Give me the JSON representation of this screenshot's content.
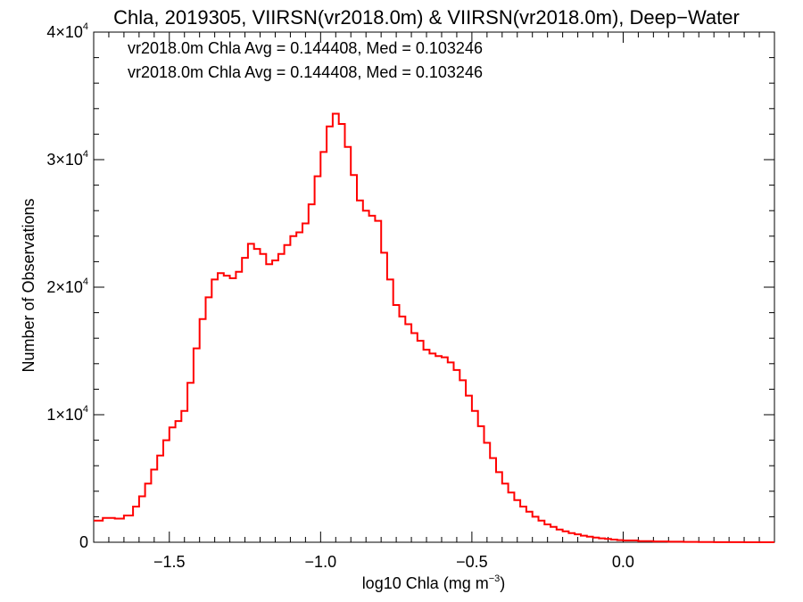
{
  "chart_data": {
    "type": "line",
    "title": "Chla, 2019305, VIIRSN(vr2018.0m) & VIIRSN(vr2018.0m), Deep−Water",
    "xlabel": "log10 Chla (mg m",
    "xlabel_sup": "−3",
    "xlabel_close": ")",
    "ylabel": "Number of Observations",
    "xlim": [
      -1.75,
      0.5
    ],
    "ylim": [
      0,
      40000
    ],
    "x_ticks": [
      {
        "value": -1.5,
        "label": "−1.5"
      },
      {
        "value": -1.0,
        "label": "−1.0"
      },
      {
        "value": -0.5,
        "label": "−0.5"
      },
      {
        "value": 0.0,
        "label": "0.0"
      }
    ],
    "y_ticks": [
      {
        "value": 0,
        "label": "0",
        "sup": ""
      },
      {
        "value": 10000,
        "label": "1×10",
        "sup": "4"
      },
      {
        "value": 20000,
        "label": "2×10",
        "sup": "4"
      },
      {
        "value": 30000,
        "label": "3×10",
        "sup": "4"
      },
      {
        "value": 40000,
        "label": "4×10",
        "sup": "4"
      }
    ],
    "annotations": [
      {
        "text": "vr2018.0m Chla Avg = 0.144408, Med = 0.103246",
        "color": "#000000"
      },
      {
        "text": "vr2018.0m Chla Avg = 0.144408, Med = 0.103246",
        "color": "#ff0000"
      }
    ],
    "grid": false,
    "step": true,
    "series": [
      {
        "color": "#ff0000",
        "points": [
          [
            -1.75,
            1700
          ],
          [
            -1.72,
            1900
          ],
          [
            -1.68,
            1850
          ],
          [
            -1.65,
            2100
          ],
          [
            -1.62,
            2800
          ],
          [
            -1.6,
            3600
          ],
          [
            -1.58,
            4600
          ],
          [
            -1.56,
            5700
          ],
          [
            -1.54,
            6800
          ],
          [
            -1.52,
            8000
          ],
          [
            -1.5,
            9000
          ],
          [
            -1.48,
            9500
          ],
          [
            -1.46,
            10300
          ],
          [
            -1.44,
            12500
          ],
          [
            -1.42,
            15200
          ],
          [
            -1.4,
            17500
          ],
          [
            -1.38,
            19200
          ],
          [
            -1.36,
            20600
          ],
          [
            -1.34,
            21100
          ],
          [
            -1.32,
            20900
          ],
          [
            -1.3,
            20700
          ],
          [
            -1.28,
            21200
          ],
          [
            -1.26,
            22300
          ],
          [
            -1.24,
            23400
          ],
          [
            -1.22,
            23000
          ],
          [
            -1.2,
            22600
          ],
          [
            -1.18,
            21800
          ],
          [
            -1.16,
            22100
          ],
          [
            -1.14,
            22600
          ],
          [
            -1.12,
            23300
          ],
          [
            -1.1,
            24000
          ],
          [
            -1.08,
            24300
          ],
          [
            -1.06,
            25000
          ],
          [
            -1.04,
            26500
          ],
          [
            -1.02,
            28700
          ],
          [
            -1.0,
            30600
          ],
          [
            -0.98,
            32600
          ],
          [
            -0.96,
            33600
          ],
          [
            -0.94,
            32800
          ],
          [
            -0.92,
            31000
          ],
          [
            -0.9,
            28800
          ],
          [
            -0.88,
            26800
          ],
          [
            -0.86,
            26000
          ],
          [
            -0.84,
            25600
          ],
          [
            -0.82,
            25200
          ],
          [
            -0.8,
            22700
          ],
          [
            -0.78,
            20600
          ],
          [
            -0.76,
            18600
          ],
          [
            -0.74,
            17700
          ],
          [
            -0.72,
            17100
          ],
          [
            -0.7,
            16400
          ],
          [
            -0.68,
            15800
          ],
          [
            -0.66,
            15100
          ],
          [
            -0.64,
            14800
          ],
          [
            -0.62,
            14600
          ],
          [
            -0.6,
            14500
          ],
          [
            -0.58,
            14100
          ],
          [
            -0.56,
            13500
          ],
          [
            -0.54,
            12700
          ],
          [
            -0.52,
            11500
          ],
          [
            -0.5,
            10300
          ],
          [
            -0.48,
            9100
          ],
          [
            -0.46,
            7800
          ],
          [
            -0.44,
            6600
          ],
          [
            -0.42,
            5500
          ],
          [
            -0.4,
            4600
          ],
          [
            -0.38,
            3900
          ],
          [
            -0.36,
            3300
          ],
          [
            -0.34,
            2800
          ],
          [
            -0.32,
            2400
          ],
          [
            -0.3,
            2000
          ],
          [
            -0.28,
            1700
          ],
          [
            -0.26,
            1400
          ],
          [
            -0.24,
            1200
          ],
          [
            -0.22,
            1000
          ],
          [
            -0.2,
            850
          ],
          [
            -0.18,
            720
          ],
          [
            -0.16,
            620
          ],
          [
            -0.14,
            520
          ],
          [
            -0.12,
            440
          ],
          [
            -0.1,
            370
          ],
          [
            -0.08,
            310
          ],
          [
            -0.06,
            260
          ],
          [
            -0.04,
            210
          ],
          [
            -0.02,
            170
          ],
          [
            0.0,
            140
          ],
          [
            0.05,
            90
          ],
          [
            0.1,
            60
          ],
          [
            0.15,
            40
          ],
          [
            0.2,
            25
          ],
          [
            0.25,
            15
          ],
          [
            0.3,
            10
          ],
          [
            0.35,
            6
          ],
          [
            0.4,
            3
          ],
          [
            0.45,
            2
          ],
          [
            0.5,
            1
          ]
        ]
      }
    ]
  }
}
